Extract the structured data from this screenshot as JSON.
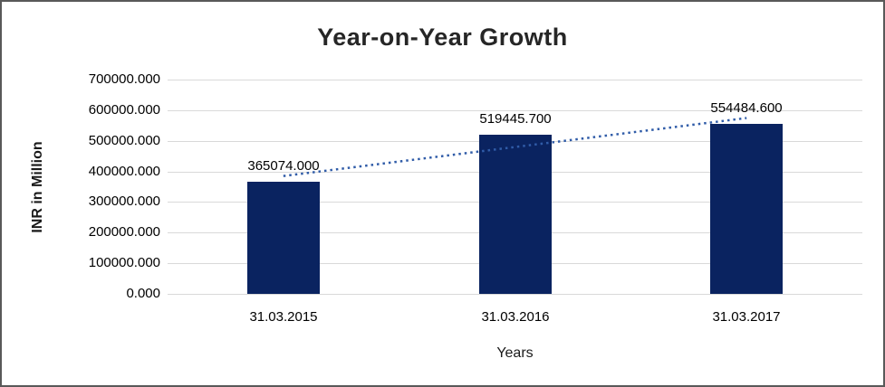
{
  "window": {
    "background": "#FFFFFF",
    "border_color": "#595959"
  },
  "chart_data": {
    "type": "bar",
    "title": "Year-on-Year Growth",
    "categories": [
      "31.03.2015",
      "31.03.2016",
      "31.03.2017"
    ],
    "values": [
      365074.0,
      519445.7,
      554484.6
    ],
    "value_labels": [
      "365074.000",
      "519445.700",
      "554484.600"
    ],
    "xlabel": "Years",
    "ylabel": "INR in Million",
    "ylim": [
      0,
      700000
    ],
    "ytick_step": 100000,
    "ytick_labels": [
      "0.000",
      "100000.000",
      "200000.000",
      "300000.000",
      "400000.000",
      "500000.000",
      "600000.000",
      "700000.000"
    ],
    "grid": true,
    "legend": "none",
    "bar_color": "#0A2360",
    "gridline_color": "#D9D9D9",
    "label_color": "#000000",
    "trendline": {
      "type": "linear",
      "style": "dotted",
      "color": "#305CA8"
    }
  }
}
